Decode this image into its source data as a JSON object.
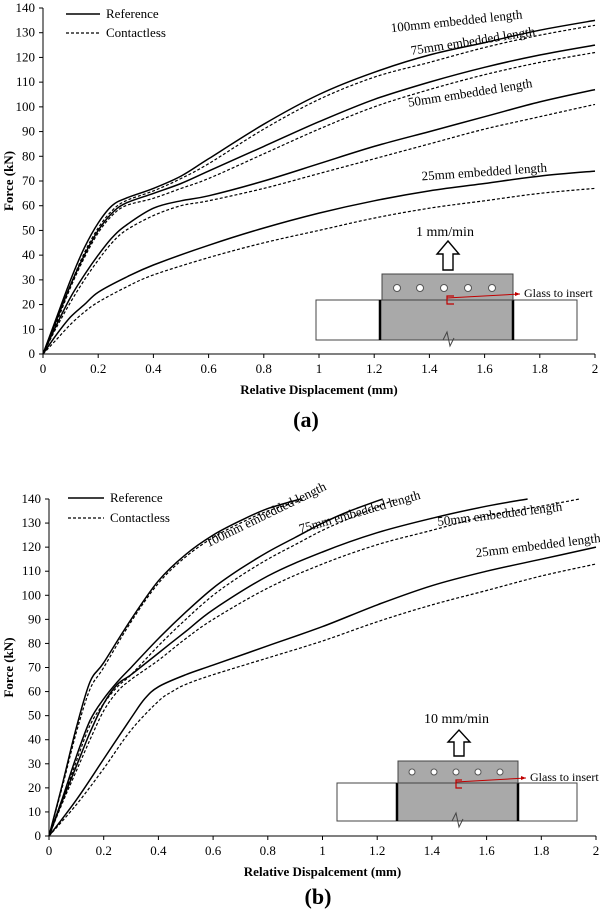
{
  "chart_data": [
    {
      "type": "line",
      "panel_label": "(a)",
      "xlabel": "Relative Displacement (mm)",
      "ylabel": "Force (kN)",
      "xlim": [
        0,
        2
      ],
      "ylim": [
        0,
        140
      ],
      "xticks": [
        "0",
        "0.2",
        "0.4",
        "0.6",
        "0.8",
        "1",
        "1.2",
        "1.4",
        "1.6",
        "1.8",
        "2"
      ],
      "yticks": [
        "0",
        "10",
        "20",
        "30",
        "40",
        "50",
        "60",
        "70",
        "80",
        "90",
        "100",
        "110",
        "120",
        "130",
        "140"
      ],
      "legend": {
        "position": "top-left",
        "entries": [
          {
            "label": "Reference",
            "style": "solid"
          },
          {
            "label": "Contactless",
            "style": "dashed"
          }
        ]
      },
      "series": [
        {
          "name": "100mm embedded length",
          "group": "100mm",
          "style": "solid",
          "x": [
            0,
            0.05,
            0.1,
            0.15,
            0.2,
            0.25,
            0.3,
            0.4,
            0.5,
            0.6,
            0.8,
            1.0,
            1.2,
            1.4,
            1.6,
            1.8,
            2.0
          ],
          "y": [
            0,
            15,
            30,
            43,
            53,
            60,
            63,
            67,
            72,
            79,
            93,
            105,
            114,
            121,
            126,
            131,
            135
          ]
        },
        {
          "name": "100mm embedded length",
          "group": "100mm",
          "style": "dashed",
          "x": [
            0,
            0.05,
            0.1,
            0.15,
            0.2,
            0.25,
            0.3,
            0.4,
            0.5,
            0.6,
            0.8,
            1.0,
            1.2,
            1.4,
            1.6,
            1.8,
            2.0
          ],
          "y": [
            0,
            14,
            28,
            41,
            51,
            58,
            62,
            66,
            71,
            77,
            91,
            103,
            112,
            118,
            124,
            129,
            133
          ]
        },
        {
          "name": "75mm embedded length",
          "group": "75mm",
          "style": "solid",
          "x": [
            0,
            0.05,
            0.1,
            0.15,
            0.2,
            0.25,
            0.3,
            0.4,
            0.5,
            0.6,
            0.8,
            1.0,
            1.2,
            1.4,
            1.6,
            1.8,
            2.0
          ],
          "y": [
            0,
            14,
            28,
            40,
            50,
            57,
            61,
            65,
            69,
            74,
            84,
            94,
            103,
            110,
            116,
            121,
            125
          ]
        },
        {
          "name": "75mm embedded length",
          "group": "75mm",
          "style": "dashed",
          "x": [
            0,
            0.05,
            0.1,
            0.15,
            0.2,
            0.25,
            0.3,
            0.4,
            0.5,
            0.6,
            0.8,
            1.0,
            1.2,
            1.4,
            1.6,
            1.8,
            2.0
          ],
          "y": [
            0,
            13,
            27,
            39,
            49,
            56,
            60,
            63,
            67,
            71,
            81,
            91,
            100,
            107,
            113,
            118,
            122
          ]
        },
        {
          "name": "50mm embedded length",
          "group": "50mm",
          "style": "solid",
          "x": [
            0,
            0.05,
            0.1,
            0.15,
            0.2,
            0.25,
            0.3,
            0.4,
            0.5,
            0.6,
            0.8,
            1.0,
            1.2,
            1.4,
            1.6,
            1.8,
            2.0
          ],
          "y": [
            0,
            12,
            23,
            32,
            40,
            47,
            52,
            59,
            62,
            64,
            70,
            77,
            84,
            90,
            96,
            102,
            107
          ]
        },
        {
          "name": "50mm embedded length",
          "group": "50mm",
          "style": "dashed",
          "x": [
            0,
            0.05,
            0.1,
            0.15,
            0.2,
            0.25,
            0.3,
            0.4,
            0.5,
            0.6,
            0.8,
            1.0,
            1.2,
            1.4,
            1.6,
            1.8,
            2.0
          ],
          "y": [
            0,
            11,
            21,
            30,
            38,
            45,
            50,
            56,
            60,
            62,
            67,
            73,
            79,
            85,
            91,
            96,
            101
          ]
        },
        {
          "name": "25mm embedded length",
          "group": "25mm",
          "style": "solid",
          "x": [
            0,
            0.05,
            0.1,
            0.15,
            0.2,
            0.3,
            0.4,
            0.6,
            0.8,
            1.0,
            1.2,
            1.4,
            1.6,
            1.8,
            2.0
          ],
          "y": [
            0,
            8,
            15,
            20,
            25,
            31,
            36,
            44,
            51,
            57,
            62,
            66,
            69,
            72,
            74
          ]
        },
        {
          "name": "25mm embedded length",
          "group": "25mm",
          "style": "dashed",
          "x": [
            0,
            0.05,
            0.1,
            0.15,
            0.2,
            0.3,
            0.4,
            0.6,
            0.8,
            1.0,
            1.2,
            1.4,
            1.6,
            1.8,
            2.0
          ],
          "y": [
            0,
            6,
            12,
            17,
            21,
            27,
            32,
            39,
            45,
            50,
            55,
            59,
            62,
            65,
            67
          ]
        }
      ],
      "curve_labels": [
        {
          "text": "100mm embedded length",
          "x": 1.5,
          "y": 133,
          "angle": -6
        },
        {
          "text": "75mm embedded length",
          "x": 1.56,
          "y": 125,
          "angle": -9
        },
        {
          "text": "50mm embedded length",
          "x": 1.55,
          "y": 104,
          "angle": -9
        },
        {
          "text": "25mm embedded length",
          "x": 1.6,
          "y": 72,
          "angle": -4
        }
      ],
      "inset": {
        "rate": "1 mm/min",
        "annotation": "Glass to insert"
      }
    },
    {
      "type": "line",
      "panel_label": "(b)",
      "xlabel": "Relative Dispalcement (mm)",
      "ylabel": "Force (kN)",
      "xlim": [
        0,
        2
      ],
      "ylim": [
        0,
        140
      ],
      "xticks": [
        "0",
        "0.2",
        "0.4",
        "0.6",
        "0.8",
        "1",
        "1.2",
        "1.4",
        "1.6",
        "1.8",
        "2"
      ],
      "yticks": [
        "0",
        "10",
        "20",
        "30",
        "40",
        "50",
        "60",
        "70",
        "80",
        "90",
        "100",
        "110",
        "120",
        "130",
        "140"
      ],
      "legend": {
        "position": "top-left",
        "entries": [
          {
            "label": "Reference",
            "style": "solid"
          },
          {
            "label": "Contactless",
            "style": "dashed"
          }
        ]
      },
      "series": [
        {
          "name": "100mm embedded length",
          "group": "100mm",
          "style": "solid",
          "x": [
            0,
            0.05,
            0.1,
            0.15,
            0.2,
            0.3,
            0.4,
            0.5,
            0.6,
            0.7,
            0.8,
            0.92
          ],
          "y": [
            0,
            22,
            45,
            64,
            72,
            90,
            106,
            117,
            125,
            131,
            136,
            140
          ]
        },
        {
          "name": "100mm embedded length",
          "group": "100mm",
          "style": "dashed",
          "x": [
            0,
            0.05,
            0.1,
            0.15,
            0.2,
            0.3,
            0.4,
            0.5,
            0.6,
            0.7,
            0.8,
            0.94
          ],
          "y": [
            0,
            21,
            43,
            61,
            70,
            89,
            105,
            116,
            124,
            130,
            135,
            140
          ]
        },
        {
          "name": "75mm embedded length",
          "group": "75mm",
          "style": "solid",
          "x": [
            0,
            0.05,
            0.1,
            0.15,
            0.2,
            0.25,
            0.3,
            0.4,
            0.5,
            0.6,
            0.7,
            0.8,
            0.9,
            1.0,
            1.1,
            1.22
          ],
          "y": [
            0,
            16,
            33,
            48,
            57,
            64,
            70,
            82,
            93,
            103,
            111,
            118,
            124,
            130,
            135,
            140
          ]
        },
        {
          "name": "75mm embedded length",
          "group": "75mm",
          "style": "dashed",
          "x": [
            0,
            0.05,
            0.1,
            0.15,
            0.2,
            0.25,
            0.3,
            0.4,
            0.5,
            0.6,
            0.7,
            0.8,
            0.9,
            1.0,
            1.1,
            1.27
          ],
          "y": [
            0,
            15,
            31,
            46,
            55,
            62,
            67,
            79,
            90,
            100,
            108,
            115,
            121,
            127,
            132,
            140
          ]
        },
        {
          "name": "50mm embedded length",
          "group": "50mm",
          "style": "solid",
          "x": [
            0,
            0.05,
            0.1,
            0.15,
            0.2,
            0.25,
            0.3,
            0.4,
            0.5,
            0.6,
            0.8,
            1.0,
            1.2,
            1.4,
            1.6,
            1.75
          ],
          "y": [
            0,
            15,
            29,
            43,
            55,
            63,
            67,
            76,
            85,
            94,
            108,
            118,
            126,
            132,
            137,
            140
          ]
        },
        {
          "name": "50mm embedded length",
          "group": "50mm",
          "style": "dashed",
          "x": [
            0,
            0.05,
            0.1,
            0.15,
            0.2,
            0.25,
            0.3,
            0.4,
            0.5,
            0.6,
            0.8,
            1.0,
            1.2,
            1.4,
            1.6,
            1.8,
            1.94
          ],
          "y": [
            0,
            14,
            27,
            40,
            52,
            60,
            65,
            73,
            82,
            90,
            103,
            113,
            121,
            127,
            133,
            137,
            140
          ]
        },
        {
          "name": "25mm embedded length",
          "group": "25mm",
          "style": "solid",
          "x": [
            0,
            0.1,
            0.2,
            0.3,
            0.35,
            0.4,
            0.5,
            0.6,
            0.8,
            1.0,
            1.2,
            1.4,
            1.6,
            1.8,
            2.0
          ],
          "y": [
            0,
            15,
            32,
            49,
            57,
            62,
            67,
            71,
            79,
            87,
            96,
            104,
            110,
            115,
            120
          ]
        },
        {
          "name": "25mm embedded length",
          "group": "25mm",
          "style": "dashed",
          "x": [
            0,
            0.1,
            0.2,
            0.3,
            0.4,
            0.45,
            0.5,
            0.6,
            0.8,
            1.0,
            1.2,
            1.4,
            1.6,
            1.8,
            2.0
          ],
          "y": [
            0,
            13,
            28,
            44,
            56,
            60,
            63,
            67,
            74,
            81,
            89,
            96,
            102,
            108,
            113
          ]
        }
      ],
      "curve_labels": [
        {
          "text": "100mm embedded length",
          "x": 0.8,
          "y": 132,
          "angle": -26
        },
        {
          "text": "75mm embedded length",
          "x": 1.14,
          "y": 133,
          "angle": -16
        },
        {
          "text": "50mm embedded length",
          "x": 1.65,
          "y": 132,
          "angle": -7
        },
        {
          "text": "25mm embedded length",
          "x": 1.79,
          "y": 119,
          "angle": -7
        }
      ],
      "inset": {
        "rate": "10 mm/min",
        "annotation": "Glass to insert"
      }
    }
  ]
}
